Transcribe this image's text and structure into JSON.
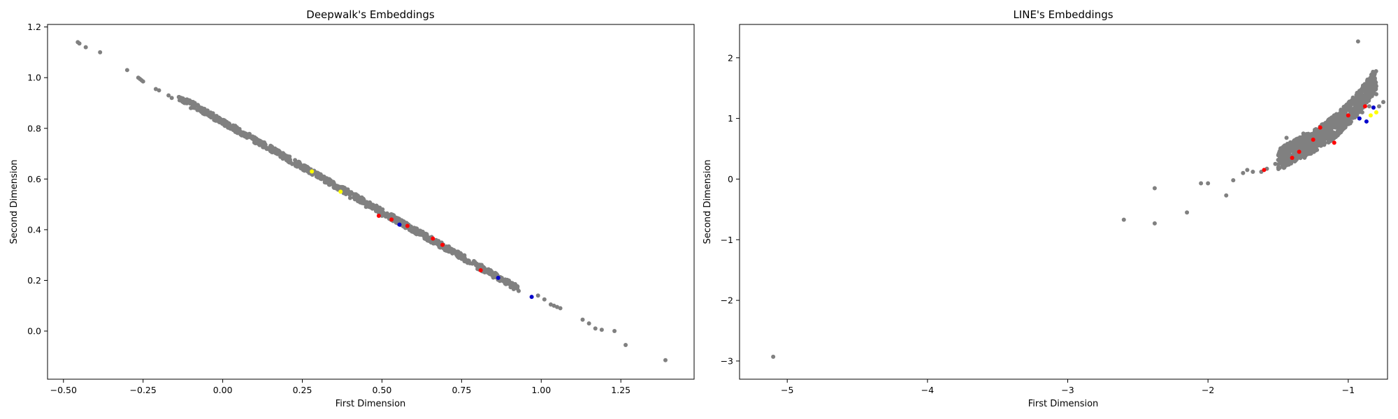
{
  "chart_data": [
    {
      "type": "scatter",
      "title": "Deepwalk's Embeddings",
      "xlabel": "First Dimension",
      "ylabel": "Second Dimension",
      "xlim": [
        -0.55,
        1.48
      ],
      "ylim": [
        -0.19,
        1.21
      ],
      "xticks": [
        -0.5,
        -0.25,
        0.0,
        0.25,
        0.5,
        0.75,
        1.0,
        1.25
      ],
      "xtick_labels": [
        "−0.50",
        "−0.25",
        "0.00",
        "0.25",
        "0.50",
        "0.75",
        "1.00",
        "1.25"
      ],
      "yticks": [
        0.0,
        0.2,
        0.4,
        0.6,
        0.8,
        1.0,
        1.2
      ],
      "ytick_labels": [
        "0.0",
        "0.2",
        "0.4",
        "0.6",
        "0.8",
        "1.0",
        "1.2"
      ],
      "grid": false,
      "series": [
        {
          "color": "#808080",
          "points": [
            [
              -0.455,
              1.14
            ],
            [
              -0.45,
              1.135
            ],
            [
              -0.43,
              1.12
            ],
            [
              -0.385,
              1.1
            ],
            [
              -0.3,
              1.03
            ],
            [
              -0.265,
              1.0
            ],
            [
              -0.26,
              0.995
            ],
            [
              -0.255,
              0.99
            ],
            [
              -0.25,
              0.985
            ],
            [
              -0.21,
              0.955
            ],
            [
              -0.2,
              0.95
            ],
            [
              -0.17,
              0.93
            ],
            [
              -0.16,
              0.92
            ],
            [
              -0.12,
              0.9
            ],
            [
              -0.1,
              0.88
            ],
            [
              -0.05,
              0.86
            ],
            [
              0.0,
              0.825
            ],
            [
              0.05,
              0.79
            ],
            [
              0.1,
              0.75
            ],
            [
              0.15,
              0.71
            ],
            [
              0.2,
              0.675
            ],
            [
              0.25,
              0.64
            ],
            [
              0.3,
              0.61
            ],
            [
              0.35,
              0.565
            ],
            [
              0.4,
              0.525
            ],
            [
              0.45,
              0.49
            ],
            [
              0.5,
              0.455
            ],
            [
              0.55,
              0.425
            ],
            [
              0.6,
              0.39
            ],
            [
              0.65,
              0.355
            ],
            [
              0.7,
              0.32
            ],
            [
              0.75,
              0.285
            ],
            [
              0.8,
              0.245
            ],
            [
              0.85,
              0.215
            ],
            [
              0.88,
              0.2
            ],
            [
              0.9,
              0.185
            ],
            [
              0.92,
              0.17
            ],
            [
              0.99,
              0.14
            ],
            [
              1.01,
              0.125
            ],
            [
              1.03,
              0.105
            ],
            [
              1.04,
              0.1
            ],
            [
              1.05,
              0.095
            ],
            [
              1.06,
              0.09
            ],
            [
              1.13,
              0.045
            ],
            [
              1.15,
              0.03
            ],
            [
              1.17,
              0.01
            ],
            [
              1.19,
              0.005
            ],
            [
              1.23,
              0.0
            ],
            [
              1.265,
              -0.055
            ],
            [
              1.39,
              -0.115
            ]
          ],
          "band": {
            "x_from": -0.14,
            "x_to": 0.93,
            "slope": -0.71,
            "intercept": 0.826,
            "spread": 0.012
          }
        },
        {
          "color": "#ff0000",
          "points": [
            [
              0.49,
              0.455
            ],
            [
              0.53,
              0.44
            ],
            [
              0.58,
              0.415
            ],
            [
              0.66,
              0.365
            ],
            [
              0.69,
              0.34
            ],
            [
              0.81,
              0.24
            ]
          ]
        },
        {
          "color": "#0000cc",
          "points": [
            [
              0.555,
              0.42
            ],
            [
              0.865,
              0.21
            ],
            [
              0.97,
              0.135
            ]
          ]
        },
        {
          "color": "#ffff00",
          "points": [
            [
              0.28,
              0.63
            ],
            [
              0.37,
              0.55
            ]
          ]
        }
      ]
    },
    {
      "type": "scatter",
      "title": "LINE's Embeddings",
      "xlabel": "First Dimension",
      "ylabel": "Second Dimension",
      "xlim": [
        -5.34,
        -0.72
      ],
      "ylim": [
        -3.3,
        2.55
      ],
      "xticks": [
        -5,
        -4,
        -3,
        -2,
        -1
      ],
      "xtick_labels": [
        "−5",
        "−4",
        "−3",
        "−2",
        "−1"
      ],
      "yticks": [
        -3,
        -2,
        -1,
        0,
        1,
        2
      ],
      "ytick_labels": [
        "−3",
        "−2",
        "−1",
        "0",
        "1",
        "2"
      ],
      "grid": false,
      "series": [
        {
          "color": "#808080",
          "points": [
            [
              -5.1,
              -2.93
            ],
            [
              -2.6,
              -0.67
            ],
            [
              -2.38,
              -0.73
            ],
            [
              -2.38,
              -0.15
            ],
            [
              -2.15,
              -0.55
            ],
            [
              -2.05,
              -0.07
            ],
            [
              -2.0,
              -0.07
            ],
            [
              -1.87,
              -0.27
            ],
            [
              -1.82,
              -0.02
            ],
            [
              -1.75,
              0.1
            ],
            [
              -1.72,
              0.15
            ],
            [
              -1.68,
              0.12
            ],
            [
              -1.62,
              0.12
            ],
            [
              -1.58,
              0.17
            ],
            [
              -1.52,
              0.25
            ],
            [
              -1.48,
              0.3
            ],
            [
              -1.42,
              0.35
            ],
            [
              -1.36,
              0.42
            ],
            [
              -1.3,
              0.45
            ],
            [
              -1.25,
              0.55
            ],
            [
              -1.2,
              0.6
            ],
            [
              -1.15,
              0.68
            ],
            [
              -1.1,
              0.75
            ],
            [
              -1.05,
              0.85
            ],
            [
              -1.0,
              0.95
            ],
            [
              -0.95,
              1.05
            ],
            [
              -0.9,
              1.1
            ],
            [
              -0.85,
              1.2
            ],
            [
              -0.93,
              2.27
            ],
            [
              -0.84,
              1.6
            ],
            [
              -0.82,
              1.55
            ],
            [
              -0.86,
              1.5
            ],
            [
              -0.8,
              1.4
            ],
            [
              -0.75,
              1.27
            ],
            [
              -0.78,
              1.2
            ],
            [
              -1.44,
              0.68
            ],
            [
              -1.38,
              0.55
            ],
            [
              -1.32,
              0.75
            ],
            [
              -1.2,
              0.85
            ],
            [
              -1.1,
              1.05
            ]
          ],
          "blob": [
            {
              "x_from": -1.5,
              "x_to": -0.8,
              "center": [
                -1.1,
                0.85
              ]
            }
          ]
        },
        {
          "color": "#ff0000",
          "points": [
            [
              -1.6,
              0.15
            ],
            [
              -1.4,
              0.35
            ],
            [
              -1.25,
              0.65
            ],
            [
              -1.2,
              0.85
            ],
            [
              -1.0,
              1.05
            ],
            [
              -0.88,
              1.2
            ],
            [
              -1.1,
              0.6
            ],
            [
              -1.35,
              0.45
            ]
          ]
        },
        {
          "color": "#0000cc",
          "points": [
            [
              -0.82,
              1.18
            ],
            [
              -0.92,
              1.0
            ],
            [
              -0.87,
              0.95
            ]
          ]
        },
        {
          "color": "#ffff00",
          "points": [
            [
              -0.84,
              1.05
            ],
            [
              -0.8,
              1.1
            ]
          ]
        }
      ]
    }
  ]
}
